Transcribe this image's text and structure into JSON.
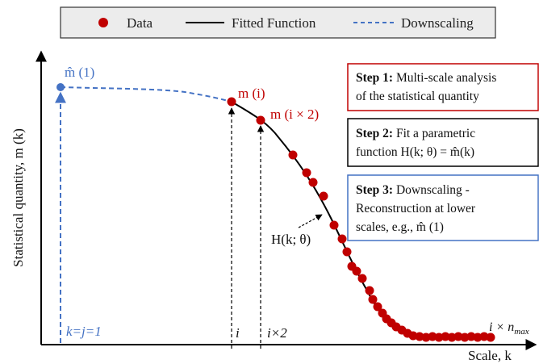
{
  "legend": {
    "data_label": "Data",
    "fitted_label": "Fitted Function",
    "downscaling_label": "Downscaling"
  },
  "axes": {
    "ylabel": "Statistical quantity, m (k)",
    "xlabel": "Scale, k",
    "x_tick_i": "i",
    "x_tick_i2": "i×2",
    "x_origin_label": "k=j=1",
    "x_max_label": "i × n",
    "x_max_sub": "max"
  },
  "annotations": {
    "m_hat_1": "m̂ (1)",
    "m_i": "m (i)",
    "m_i2": "m (i × 2)",
    "fit_label": "H(k; θ)"
  },
  "steps": [
    {
      "bold": "Step 1:",
      "line1": " Multi-scale analysis",
      "line2": "of the statistical quantity",
      "line3": ""
    },
    {
      "bold": "Step 2:",
      "line1": " Fit a parametric",
      "line2": "function H(k; θ) = m̂(k)",
      "line3": ""
    },
    {
      "bold": "Step 3:",
      "line1": " Downscaling -",
      "line2": "Reconstruction at lower",
      "line3": "scales, e.g., m̂ (1)"
    }
  ],
  "colors": {
    "data": "#c00000",
    "downscale": "#4472c4",
    "fit": "#000000",
    "step1_border": "#c00000",
    "step2_border": "#000000",
    "step3_border": "#4472c4"
  }
}
